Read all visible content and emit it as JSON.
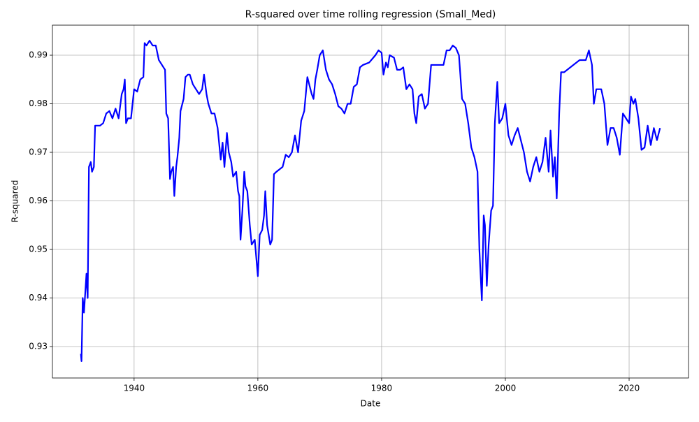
{
  "chart_data": {
    "type": "line",
    "title": "R-squared over time rolling regression (Small_Med)",
    "x_label": "Date",
    "y_label": "R-squared",
    "color": "#0000ff",
    "grid": true,
    "xlim": [
      1926.8,
      2029.6
    ],
    "ylim": [
      0.92353,
      0.99619
    ],
    "xticks": [
      1940,
      1960,
      1980,
      2000,
      2020
    ],
    "yticks": [
      0.93,
      0.94,
      0.95,
      0.96,
      0.97,
      0.98,
      0.99
    ],
    "x": [
      1931.4,
      1931.5,
      1931.7,
      1931.9,
      1932.1,
      1932.3,
      1932.5,
      1932.7,
      1933.0,
      1933.2,
      1933.5,
      1933.7,
      1934.5,
      1935,
      1935.5,
      1936,
      1936.5,
      1937,
      1937.5,
      1938,
      1938.3,
      1938.5,
      1938.7,
      1939,
      1939.5,
      1940,
      1940.5,
      1941,
      1941.5,
      1941.7,
      1942,
      1942.5,
      1943,
      1943.5,
      1944,
      1944.5,
      1945,
      1945.2,
      1945.5,
      1945.8,
      1946,
      1946.3,
      1946.5,
      1946.8,
      1947,
      1947.3,
      1947.5,
      1948,
      1948.3,
      1948.7,
      1949,
      1949.5,
      1950,
      1950.5,
      1951,
      1951.3,
      1951.7,
      1952,
      1952.5,
      1953,
      1953.5,
      1954,
      1954.3,
      1954.6,
      1955,
      1955.3,
      1955.7,
      1956,
      1956.5,
      1956.8,
      1957,
      1957.2,
      1957.5,
      1957.8,
      1958,
      1958.3,
      1958.7,
      1959,
      1959.5,
      1960,
      1960.3,
      1960.7,
      1961,
      1961.2,
      1961.5,
      1962,
      1962.3,
      1962.6,
      1963,
      1963.5,
      1964,
      1964.5,
      1965,
      1965.5,
      1966,
      1966.5,
      1967,
      1967.5,
      1968,
      1968.3,
      1968.7,
      1969,
      1969.3,
      1969.6,
      1970,
      1970.5,
      1971,
      1971.5,
      1972,
      1972.5,
      1973,
      1973.5,
      1974,
      1974.5,
      1975,
      1975.5,
      1976,
      1976.5,
      1977,
      1978,
      1979,
      1979.5,
      1980,
      1980.3,
      1980.7,
      1981,
      1981.3,
      1982,
      1982.5,
      1983,
      1983.5,
      1984,
      1984.5,
      1985,
      1985.3,
      1985.6,
      1986,
      1986.5,
      1987,
      1987.5,
      1988,
      1989,
      1990,
      1990.5,
      1991,
      1991.5,
      1992,
      1992.5,
      1993,
      1993.5,
      1994,
      1994.5,
      1995,
      1995.5,
      1995.8,
      1996.2,
      1996.5,
      1996.7,
      1997,
      1997.3,
      1997.7,
      1998,
      1998.3,
      1998.7,
      1999,
      1999.5,
      2000,
      2000.5,
      2001,
      2001.5,
      2002,
      2002.5,
      2003,
      2003.5,
      2004,
      2004.5,
      2005,
      2005.5,
      2006,
      2006.5,
      2007,
      2007.3,
      2007.7,
      2008,
      2008.3,
      2008.7,
      2009,
      2009.5,
      2010,
      2011,
      2012,
      2013,
      2013.5,
      2014,
      2014.3,
      2014.7,
      2015,
      2015.5,
      2016,
      2016.5,
      2017,
      2017.5,
      2018,
      2018.5,
      2019,
      2019.5,
      2020,
      2020.3,
      2020.7,
      2021,
      2021.5,
      2022,
      2022.5,
      2023,
      2023.5,
      2024,
      2024.5,
      2025
    ],
    "values": [
      0.9285,
      0.927,
      0.94,
      0.937,
      0.941,
      0.945,
      0.94,
      0.967,
      0.968,
      0.966,
      0.967,
      0.9755,
      0.9755,
      0.976,
      0.978,
      0.9785,
      0.977,
      0.979,
      0.977,
      0.982,
      0.983,
      0.985,
      0.976,
      0.977,
      0.977,
      0.983,
      0.9825,
      0.985,
      0.9855,
      0.9925,
      0.992,
      0.993,
      0.992,
      0.992,
      0.989,
      0.988,
      0.987,
      0.978,
      0.977,
      0.9645,
      0.966,
      0.967,
      0.961,
      0.967,
      0.969,
      0.973,
      0.9785,
      0.981,
      0.9855,
      0.986,
      0.986,
      0.984,
      0.983,
      0.982,
      0.983,
      0.986,
      0.982,
      0.98,
      0.978,
      0.978,
      0.975,
      0.9685,
      0.972,
      0.967,
      0.974,
      0.97,
      0.968,
      0.965,
      0.966,
      0.962,
      0.961,
      0.952,
      0.958,
      0.966,
      0.963,
      0.962,
      0.955,
      0.951,
      0.952,
      0.9445,
      0.953,
      0.954,
      0.957,
      0.962,
      0.955,
      0.951,
      0.952,
      0.9655,
      0.966,
      0.9665,
      0.967,
      0.9695,
      0.969,
      0.97,
      0.9735,
      0.97,
      0.9765,
      0.9785,
      0.9855,
      0.984,
      0.982,
      0.981,
      0.985,
      0.987,
      0.99,
      0.991,
      0.987,
      0.985,
      0.984,
      0.982,
      0.9795,
      0.979,
      0.978,
      0.98,
      0.98,
      0.9835,
      0.984,
      0.9875,
      0.988,
      0.9885,
      0.99,
      0.991,
      0.9905,
      0.986,
      0.9885,
      0.9875,
      0.99,
      0.9895,
      0.987,
      0.987,
      0.9875,
      0.983,
      0.984,
      0.983,
      0.978,
      0.976,
      0.9815,
      0.982,
      0.979,
      0.98,
      0.988,
      0.988,
      0.988,
      0.991,
      0.991,
      0.992,
      0.9915,
      0.99,
      0.981,
      0.98,
      0.976,
      0.971,
      0.969,
      0.966,
      0.95,
      0.9395,
      0.957,
      0.955,
      0.9425,
      0.951,
      0.958,
      0.959,
      0.976,
      0.9845,
      0.976,
      0.977,
      0.98,
      0.9735,
      0.9715,
      0.9735,
      0.975,
      0.9725,
      0.97,
      0.966,
      0.964,
      0.967,
      0.969,
      0.966,
      0.968,
      0.973,
      0.966,
      0.9745,
      0.965,
      0.969,
      0.9605,
      0.978,
      0.9865,
      0.9865,
      0.987,
      0.988,
      0.989,
      0.989,
      0.991,
      0.988,
      0.98,
      0.983,
      0.983,
      0.983,
      0.98,
      0.9715,
      0.975,
      0.975,
      0.973,
      0.9695,
      0.978,
      0.977,
      0.976,
      0.9815,
      0.98,
      0.981,
      0.977,
      0.9705,
      0.971,
      0.9755,
      0.9715,
      0.975,
      0.9725,
      0.975
    ]
  }
}
